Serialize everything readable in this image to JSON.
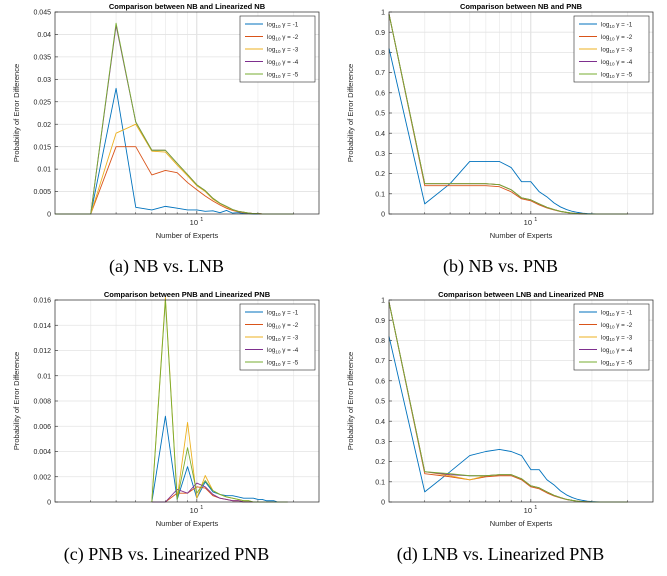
{
  "captions": [
    "(a) NB vs. LNB",
    "(b) NB vs. PNB",
    "(c) PNB vs. Linearized PNB",
    "(d) LNB vs. Linearized PNB"
  ],
  "legend": {
    "prefix": "log",
    "subscript": "10",
    "labels": [
      "γ = -1",
      "γ = -2",
      "γ = -3",
      "γ = -4",
      "γ = -5"
    ]
  },
  "colors": [
    "#0072bd",
    "#d95319",
    "#edb120",
    "#7e2f8e",
    "#77ac30"
  ],
  "chart_data": [
    {
      "type": "line",
      "title": "Comparison between NB and Linearized NB",
      "xlabel": "Number of Experts",
      "ylabel": "Probability of Error Difference",
      "x_scale": "log",
      "xlim": [
        2,
        40
      ],
      "ylim": [
        0,
        0.045
      ],
      "yticks": [
        "0",
        "0.005",
        "0.01",
        "0.015",
        "0.02",
        "0.025",
        "0.03",
        "0.035",
        "0.04",
        "0.045"
      ],
      "xtick_label": "10",
      "xtick_exp": "1",
      "grid": true,
      "legend_position": "top-right",
      "x": [
        2,
        3,
        4,
        5,
        6,
        7,
        8,
        9,
        10,
        11,
        12,
        13,
        14,
        15,
        16,
        17,
        18,
        19,
        20,
        21,
        22,
        23,
        24,
        25,
        26,
        27,
        28,
        29,
        30
      ],
      "series": [
        {
          "values": [
            0,
            0,
            0.028,
            0.0015,
            0.0009,
            0.0017,
            0.0013,
            0.0009,
            0.0009,
            0.0006,
            0.0007,
            0.0003,
            0.0008,
            0.0002,
            0.0003,
            0.0001,
            0.0001,
            0,
            0,
            0,
            0,
            0,
            0,
            0,
            0,
            0,
            0,
            0,
            0
          ]
        },
        {
          "values": [
            0,
            0,
            0.015,
            0.015,
            0.0087,
            0.0097,
            0.0092,
            0.007,
            0.0054,
            0.004,
            0.0029,
            0.002,
            0.0013,
            0.0008,
            0.0005,
            0.0003,
            0.0002,
            0.0001,
            0.0001,
            0,
            0,
            0,
            0,
            0,
            0,
            0,
            0,
            0,
            0
          ]
        },
        {
          "values": [
            0,
            0,
            0.018,
            0.02,
            0.014,
            0.0138,
            0.0109,
            0.0085,
            0.0063,
            0.005,
            0.0033,
            0.0023,
            0.0016,
            0.0009,
            0.0006,
            0.0004,
            0.0002,
            0.0001,
            0.0001,
            0,
            0,
            0,
            0,
            0,
            0,
            0,
            0,
            0,
            0
          ]
        },
        {
          "values": [
            0,
            0,
            0.042,
            0.0205,
            0.0142,
            0.0142,
            0.0113,
            0.0088,
            0.0065,
            0.0052,
            0.0035,
            0.0024,
            0.0017,
            0.001,
            0.0006,
            0.0004,
            0.0002,
            0.0001,
            0.0001,
            0,
            0,
            0,
            0,
            0,
            0,
            0,
            0,
            0,
            0
          ]
        },
        {
          "values": [
            0,
            0,
            0.0425,
            0.0205,
            0.0142,
            0.0142,
            0.0113,
            0.0088,
            0.0065,
            0.0052,
            0.0035,
            0.0024,
            0.0017,
            0.001,
            0.0006,
            0.0004,
            0.0002,
            0.0001,
            0.0001,
            0,
            0,
            0,
            0,
            0,
            0,
            0,
            0,
            0,
            0
          ]
        }
      ]
    },
    {
      "type": "line",
      "title": "Comparison between NB and PNB",
      "xlabel": "Number of Experts",
      "ylabel": "Probability of Error Difference",
      "x_scale": "log",
      "xlim": [
        2,
        40
      ],
      "ylim": [
        0,
        1
      ],
      "yticks": [
        "0",
        "0.1",
        "0.2",
        "0.3",
        "0.4",
        "0.5",
        "0.6",
        "0.7",
        "0.8",
        "0.9",
        "1"
      ],
      "xtick_label": "10",
      "xtick_exp": "1",
      "grid": true,
      "legend_position": "top-right",
      "x": [
        2,
        3,
        4,
        5,
        6,
        7,
        8,
        9,
        10,
        11,
        12,
        13,
        14,
        15,
        16,
        17,
        18,
        19,
        20,
        21,
        22,
        23,
        24,
        25,
        26,
        27,
        28,
        29,
        30
      ],
      "series": [
        {
          "values": [
            0.82,
            0.05,
            0.15,
            0.26,
            0.26,
            0.26,
            0.23,
            0.16,
            0.16,
            0.11,
            0.085,
            0.055,
            0.035,
            0.022,
            0.013,
            0.008,
            0.004,
            0.002,
            0.001,
            0,
            0,
            0,
            0,
            0,
            0,
            0,
            0,
            0,
            0
          ]
        },
        {
          "values": [
            0.99,
            0.14,
            0.14,
            0.14,
            0.14,
            0.135,
            0.11,
            0.075,
            0.065,
            0.045,
            0.03,
            0.02,
            0.012,
            0.007,
            0.004,
            0.002,
            0.001,
            0,
            0,
            0,
            0,
            0,
            0,
            0,
            0,
            0,
            0,
            0,
            0
          ]
        },
        {
          "values": [
            0.99,
            0.15,
            0.15,
            0.15,
            0.15,
            0.145,
            0.12,
            0.08,
            0.07,
            0.05,
            0.033,
            0.022,
            0.013,
            0.008,
            0.004,
            0.002,
            0.001,
            0,
            0,
            0,
            0,
            0,
            0,
            0,
            0,
            0,
            0,
            0,
            0
          ]
        },
        {
          "values": [
            0.99,
            0.15,
            0.15,
            0.15,
            0.15,
            0.145,
            0.12,
            0.08,
            0.07,
            0.05,
            0.033,
            0.022,
            0.013,
            0.008,
            0.004,
            0.002,
            0.001,
            0,
            0,
            0,
            0,
            0,
            0,
            0,
            0,
            0,
            0,
            0,
            0
          ]
        },
        {
          "values": [
            0.99,
            0.15,
            0.15,
            0.15,
            0.15,
            0.145,
            0.12,
            0.08,
            0.07,
            0.05,
            0.033,
            0.022,
            0.013,
            0.008,
            0.004,
            0.002,
            0.001,
            0,
            0,
            0,
            0,
            0,
            0,
            0,
            0,
            0,
            0,
            0,
            0
          ]
        }
      ]
    },
    {
      "type": "line",
      "title": "Comparison between PNB and Linearized PNB",
      "xlabel": "Number of Experts",
      "ylabel": "Probability of Error Difference",
      "x_scale": "log",
      "xlim": [
        2,
        40
      ],
      "ylim": [
        0,
        0.016
      ],
      "yticks": [
        "0",
        "0.002",
        "0.004",
        "0.006",
        "0.008",
        "0.01",
        "0.012",
        "0.014",
        "0.016"
      ],
      "xtick_label": "10",
      "xtick_exp": "1",
      "grid": true,
      "legend_position": "top-right",
      "x": [
        6,
        7,
        8,
        9,
        10,
        11,
        12,
        13,
        14,
        15,
        16,
        17,
        18,
        19,
        20,
        21,
        22,
        23,
        24,
        25,
        26,
        27,
        28
      ],
      "series": [
        {
          "values": [
            0,
            0.0068,
            0.0002,
            0.0028,
            0.0003,
            0.0016,
            0.0008,
            0.0006,
            0.0005,
            0.0005,
            0.0004,
            0.0003,
            0.0003,
            0.0003,
            0.0002,
            0.0002,
            0.0001,
            0.0001,
            0.0001,
            0,
            0,
            0,
            0
          ]
        },
        {
          "values": [
            0,
            0,
            0.0007,
            0.0007,
            0.0012,
            0.0011,
            0.0005,
            0.0003,
            0.0002,
            0.0001,
            0.0001,
            0,
            0,
            0,
            0,
            0,
            0,
            0,
            0,
            0,
            0,
            0,
            0
          ]
        },
        {
          "values": [
            0,
            0.0162,
            0.0003,
            0.0063,
            0.0003,
            0.0021,
            0.0009,
            0.0006,
            0.0004,
            0.0003,
            0.0002,
            0.0001,
            0.0001,
            0,
            0,
            0,
            0,
            0,
            0,
            0,
            0,
            0,
            0
          ]
        },
        {
          "values": [
            0,
            0,
            0.001,
            0.0007,
            0.0015,
            0.0012,
            0.0006,
            0.0003,
            0.0002,
            0.0001,
            0.0001,
            0,
            0,
            0,
            0,
            0,
            0,
            0,
            0,
            0,
            0,
            0,
            0
          ]
        },
        {
          "values": [
            0,
            0.016,
            0.0002,
            0.0043,
            0.0007,
            0.0017,
            0.0009,
            0.0006,
            0.0004,
            0.0003,
            0.0002,
            0.0001,
            0.0001,
            0,
            0,
            0,
            0,
            0,
            0,
            0,
            0,
            0,
            0
          ]
        }
      ]
    },
    {
      "type": "line",
      "title": "Comparison between LNB and Linearized PNB",
      "xlabel": "Number of Experts",
      "ylabel": "Probability of Error Difference",
      "x_scale": "log",
      "xlim": [
        2,
        40
      ],
      "ylim": [
        0,
        1
      ],
      "yticks": [
        "0",
        "0.1",
        "0.2",
        "0.3",
        "0.4",
        "0.5",
        "0.6",
        "0.7",
        "0.8",
        "0.9",
        "1"
      ],
      "xtick_label": "10",
      "xtick_exp": "1",
      "grid": true,
      "legend_position": "top-right",
      "x": [
        2,
        3,
        4,
        5,
        6,
        7,
        8,
        9,
        10,
        11,
        12,
        13,
        14,
        15,
        16,
        17,
        18,
        19,
        20,
        21,
        22,
        23,
        24,
        25,
        26,
        27,
        28,
        29,
        30
      ],
      "series": [
        {
          "values": [
            0.82,
            0.05,
            0.15,
            0.23,
            0.25,
            0.26,
            0.25,
            0.23,
            0.16,
            0.16,
            0.11,
            0.085,
            0.055,
            0.035,
            0.022,
            0.013,
            0.008,
            0.004,
            0.002,
            0.001,
            0,
            0,
            0,
            0,
            0,
            0,
            0,
            0,
            0
          ]
        },
        {
          "values": [
            0.99,
            0.14,
            0.125,
            0.11,
            0.125,
            0.13,
            0.13,
            0.11,
            0.075,
            0.065,
            0.045,
            0.03,
            0.02,
            0.012,
            0.007,
            0.004,
            0.002,
            0.001,
            0,
            0,
            0,
            0,
            0,
            0,
            0,
            0,
            0,
            0,
            0
          ]
        },
        {
          "values": [
            0.99,
            0.15,
            0.13,
            0.11,
            0.13,
            0.135,
            0.135,
            0.115,
            0.08,
            0.07,
            0.05,
            0.033,
            0.022,
            0.013,
            0.008,
            0.004,
            0.002,
            0.001,
            0,
            0,
            0,
            0,
            0,
            0,
            0,
            0,
            0,
            0,
            0
          ]
        },
        {
          "values": [
            0.99,
            0.15,
            0.135,
            0.13,
            0.13,
            0.135,
            0.135,
            0.115,
            0.08,
            0.07,
            0.05,
            0.033,
            0.022,
            0.013,
            0.008,
            0.004,
            0.002,
            0.001,
            0,
            0,
            0,
            0,
            0,
            0,
            0,
            0,
            0,
            0,
            0
          ]
        },
        {
          "values": [
            0.99,
            0.15,
            0.14,
            0.13,
            0.13,
            0.135,
            0.135,
            0.115,
            0.08,
            0.07,
            0.05,
            0.033,
            0.022,
            0.013,
            0.008,
            0.004,
            0.002,
            0.001,
            0,
            0,
            0,
            0,
            0,
            0,
            0,
            0,
            0,
            0,
            0
          ]
        }
      ]
    }
  ]
}
